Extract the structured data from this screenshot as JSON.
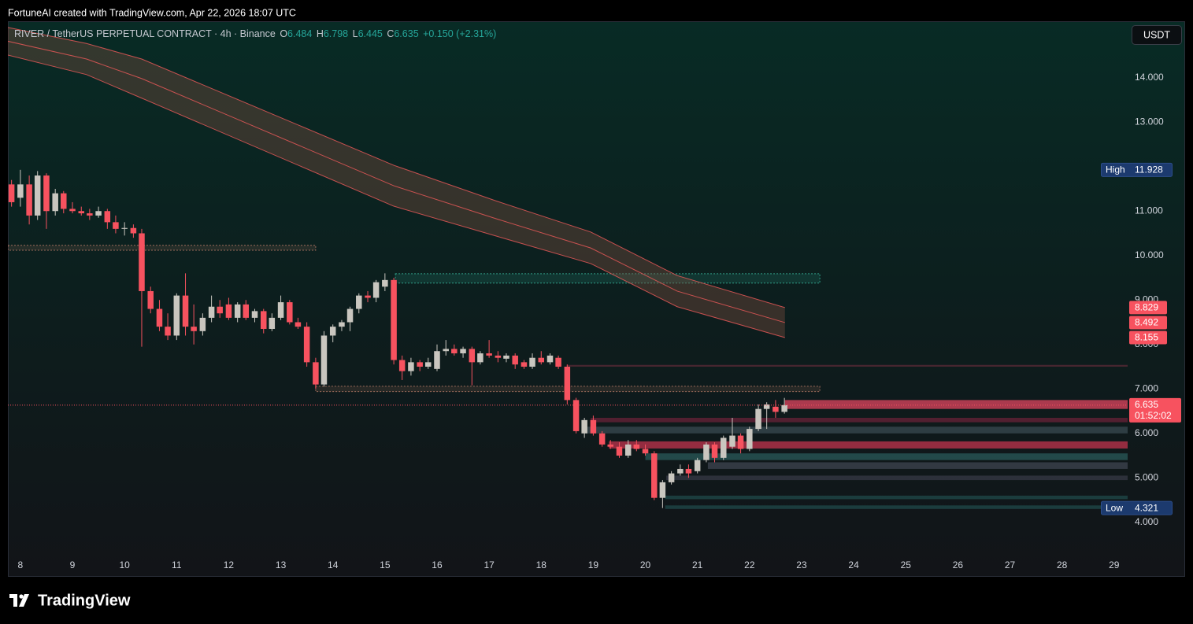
{
  "chart_data": {
    "type": "candlestick",
    "watermark": "FortuneAI created with TradingView.com, Apr 22, 2026 18:07 UTC",
    "symbol": "RIVER / TetherUS PERPETUAL CONTRACT · 4h · Binance",
    "ohlc_labels": [
      "O",
      "H",
      "L",
      "C"
    ],
    "change_label": "+0.150 (+2.31%)",
    "currency": "USDT",
    "countdown": "01:52:02",
    "high_label": "High",
    "low_label": "Low",
    "brand": "TradingView",
    "up_color": "#c9c6bf",
    "down_color": "#f7525f",
    "x": [
      7.83,
      8,
      8.17,
      8.33,
      8.5,
      8.67,
      8.83,
      9,
      9.17,
      9.33,
      9.5,
      9.67,
      9.83,
      10,
      10.17,
      10.33,
      10.5,
      10.67,
      10.83,
      11,
      11.17,
      11.33,
      11.5,
      11.67,
      11.83,
      12,
      12.17,
      12.33,
      12.5,
      12.67,
      12.83,
      13,
      13.17,
      13.33,
      13.5,
      13.67,
      13.83,
      14,
      14.17,
      14.33,
      14.5,
      14.67,
      14.83,
      15,
      15.17,
      15.33,
      15.5,
      15.67,
      15.83,
      16,
      16.17,
      16.33,
      16.5,
      16.67,
      16.83,
      17,
      17.17,
      17.33,
      17.5,
      17.67,
      17.83,
      18,
      18.17,
      18.33,
      18.5,
      18.67,
      18.83,
      19,
      19.17,
      19.33,
      19.5,
      19.67,
      19.83,
      20,
      20.17,
      20.33,
      20.5,
      20.67,
      20.83,
      21,
      21.17,
      21.33,
      21.5,
      21.67,
      21.83,
      22,
      22.17,
      22.33,
      22.5,
      22.67
    ],
    "open": [
      11.6,
      11.3,
      11.6,
      10.9,
      11.8,
      11.0,
      11.4,
      11.05,
      11.0,
      10.95,
      10.9,
      11.0,
      10.75,
      10.6,
      10.62,
      10.5,
      9.2,
      8.8,
      8.4,
      8.2,
      9.1,
      8.4,
      8.3,
      8.6,
      8.85,
      8.9,
      8.6,
      8.9,
      8.6,
      8.75,
      8.35,
      8.6,
      8.95,
      8.5,
      8.4,
      7.6,
      7.1,
      8.2,
      8.4,
      8.5,
      8.8,
      9.1,
      9.05,
      9.3,
      9.45,
      7.65,
      7.4,
      7.6,
      7.5,
      7.45,
      7.85,
      7.9,
      7.8,
      7.9,
      7.6,
      7.8,
      7.75,
      7.68,
      7.75,
      7.6,
      7.5,
      7.7,
      7.6,
      7.7,
      7.5,
      6.75,
      6.0,
      6.3,
      6.0,
      5.75,
      5.7,
      5.5,
      5.75,
      5.65,
      5.55,
      4.55,
      4.9,
      5.1,
      5.2,
      5.15,
      5.4,
      5.75,
      5.45,
      5.7,
      5.95,
      5.65,
      6.1,
      6.55,
      6.6,
      6.484
    ],
    "high": [
      11.7,
      11.928,
      11.8,
      11.9,
      11.85,
      11.5,
      11.45,
      11.2,
      11.1,
      11.05,
      11.1,
      11.05,
      10.9,
      10.75,
      10.7,
      10.6,
      9.3,
      9.0,
      8.7,
      9.15,
      9.6,
      8.9,
      8.7,
      9.1,
      9.0,
      9.05,
      8.95,
      9.0,
      8.8,
      8.8,
      8.7,
      9.1,
      9.0,
      8.6,
      8.5,
      7.7,
      8.3,
      8.45,
      8.55,
      8.85,
      9.15,
      9.2,
      9.45,
      9.6,
      9.5,
      7.75,
      7.7,
      7.65,
      7.7,
      8.0,
      8.1,
      8.0,
      7.95,
      7.95,
      7.85,
      8.1,
      7.85,
      7.8,
      7.8,
      7.65,
      7.8,
      7.85,
      7.8,
      7.75,
      7.55,
      6.8,
      6.35,
      6.4,
      6.05,
      5.85,
      5.8,
      5.85,
      5.85,
      5.75,
      5.6,
      4.95,
      5.15,
      5.3,
      5.3,
      5.45,
      5.8,
      5.8,
      5.95,
      6.35,
      6.0,
      6.15,
      6.65,
      6.7,
      6.75,
      6.798
    ],
    "low": [
      11.1,
      11.1,
      10.7,
      10.8,
      10.6,
      10.9,
      10.95,
      10.95,
      10.9,
      10.8,
      10.85,
      10.6,
      10.5,
      10.45,
      10.4,
      7.95,
      8.7,
      8.3,
      8.1,
      8.1,
      8.2,
      8.0,
      8.2,
      8.5,
      8.6,
      8.55,
      8.5,
      8.55,
      8.5,
      8.25,
      8.3,
      8.55,
      8.45,
      8.35,
      7.5,
      7.0,
      7.05,
      8.05,
      8.3,
      8.3,
      8.7,
      8.95,
      8.95,
      9.2,
      7.55,
      7.2,
      7.3,
      7.4,
      7.45,
      7.4,
      7.75,
      7.75,
      7.7,
      7.08,
      7.55,
      7.7,
      7.6,
      7.6,
      7.45,
      7.45,
      7.45,
      7.55,
      7.55,
      7.45,
      6.65,
      6.0,
      5.9,
      5.95,
      5.7,
      5.65,
      5.45,
      5.45,
      5.6,
      5.5,
      4.5,
      4.321,
      4.85,
      5.05,
      5.0,
      5.1,
      5.35,
      5.35,
      5.4,
      5.65,
      5.55,
      5.6,
      6.05,
      6.1,
      6.35,
      6.445
    ],
    "close": [
      11.2,
      11.6,
      10.9,
      11.8,
      11.0,
      11.4,
      11.05,
      11.0,
      10.95,
      10.9,
      11.0,
      10.75,
      10.6,
      10.62,
      10.5,
      9.2,
      8.8,
      8.4,
      8.2,
      9.1,
      8.4,
      8.3,
      8.6,
      8.85,
      8.7,
      8.6,
      8.9,
      8.6,
      8.75,
      8.35,
      8.6,
      8.95,
      8.5,
      8.4,
      7.6,
      7.1,
      8.2,
      8.4,
      8.5,
      8.8,
      9.1,
      9.05,
      9.4,
      9.45,
      7.65,
      7.4,
      7.6,
      7.5,
      7.6,
      7.85,
      7.9,
      7.8,
      7.9,
      7.6,
      7.8,
      7.75,
      7.7,
      7.75,
      7.55,
      7.5,
      7.7,
      7.6,
      7.75,
      7.5,
      6.75,
      6.05,
      6.3,
      6.0,
      5.75,
      5.7,
      5.5,
      5.75,
      5.65,
      5.55,
      4.55,
      4.9,
      5.1,
      5.2,
      5.1,
      5.4,
      5.75,
      5.45,
      5.9,
      5.95,
      5.65,
      6.1,
      6.55,
      6.65,
      6.484,
      6.635
    ],
    "band": {
      "color": "#f05a5a",
      "fill": "rgba(125,78,64,0.38)",
      "x": [
        7.76,
        9.27,
        10.33,
        15.17,
        17.13,
        18.95,
        20.61,
        22.68
      ],
      "upper": [
        15.13,
        14.77,
        14.42,
        12.03,
        11.23,
        10.53,
        9.55,
        8.829
      ],
      "middle": [
        14.82,
        14.42,
        13.98,
        11.57,
        10.83,
        10.17,
        9.2,
        8.492
      ],
      "lower": [
        14.51,
        14.07,
        13.54,
        11.11,
        10.44,
        9.82,
        8.85,
        8.155
      ]
    },
    "zones": [
      {
        "from": 7.76,
        "to": 13.67,
        "low": 10.12,
        "high": 10.23,
        "color": "#9a6a5a"
      },
      {
        "from": 15.2,
        "to": 23.35,
        "low": 9.38,
        "high": 9.59,
        "color": "#2f9e88"
      },
      {
        "from": 13.67,
        "to": 23.35,
        "low": 6.94,
        "high": 7.06,
        "color": "#9a6a5a"
      }
    ],
    "liquidity": [
      {
        "from": 18.49,
        "low": 7.5,
        "high": 7.54,
        "color": "#5a2a35"
      },
      {
        "from": 22.68,
        "low": 6.55,
        "high": 6.75,
        "color": "#e0455f"
      },
      {
        "from": 18.95,
        "low": 6.25,
        "high": 6.35,
        "color": "#6a2238"
      },
      {
        "from": 18.85,
        "low": 6.0,
        "high": 6.15,
        "color": "#3a4a52"
      },
      {
        "from": 19.3,
        "low": 5.66,
        "high": 5.82,
        "color": "#c2334d"
      },
      {
        "from": 20.0,
        "low": 5.4,
        "high": 5.55,
        "color": "#2a5a5a"
      },
      {
        "from": 21.2,
        "low": 5.2,
        "high": 5.35,
        "color": "#3e4450"
      },
      {
        "from": 20.4,
        "low": 4.95,
        "high": 5.05,
        "color": "#353a45"
      },
      {
        "from": 20.38,
        "low": 4.52,
        "high": 4.6,
        "color": "#1f4a4a"
      },
      {
        "from": 20.38,
        "low": 4.3,
        "high": 4.38,
        "color": "#1f4a4a"
      }
    ],
    "xlim": [
      7.76,
      29.26
    ],
    "xticks": [
      8,
      9,
      10,
      11,
      12,
      13,
      14,
      15,
      16,
      17,
      18,
      19,
      20,
      21,
      22,
      23,
      24,
      25,
      26,
      27,
      28,
      29
    ],
    "ylim": [
      3.27,
      15.27
    ],
    "yticks": [
      {
        "value": 4,
        "label": "4.000"
      },
      {
        "value": 5,
        "label": "5.000"
      },
      {
        "value": 6,
        "label": "6.000"
      },
      {
        "value": 7,
        "label": "7.000"
      },
      {
        "value": 8,
        "label": "8.000"
      },
      {
        "value": 9,
        "label": "9.000"
      },
      {
        "value": 10,
        "label": "10.000"
      },
      {
        "value": 11,
        "label": "11.000"
      },
      {
        "value": 13,
        "label": "13.000"
      },
      {
        "value": 14,
        "label": "14.000"
      }
    ]
  }
}
